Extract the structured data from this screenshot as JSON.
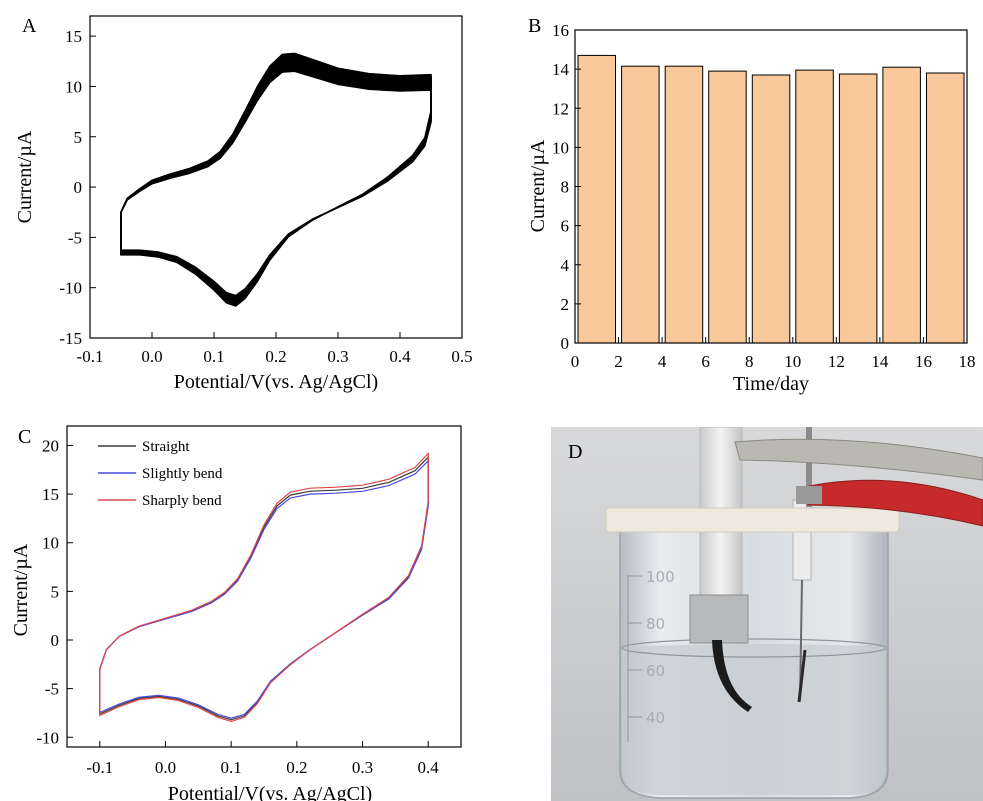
{
  "figure": {
    "panels": [
      "A",
      "B",
      "C",
      "D"
    ]
  },
  "chart_data": [
    {
      "panel": "A",
      "type": "line",
      "xlabel": "Potential/V(vs. Ag/AgCl)",
      "ylabel": "Current/µA",
      "xlim": [
        -0.1,
        0.5
      ],
      "ylim": [
        -15,
        17
      ],
      "xticks": [
        -0.1,
        0.0,
        0.1,
        0.2,
        0.3,
        0.4,
        0.5
      ],
      "xtick_labels": [
        "-0.1",
        "0.0",
        "0.1",
        "0.2",
        "0.3",
        "0.4",
        "0.5"
      ],
      "yticks": [
        -15,
        -10,
        -5,
        0,
        5,
        10,
        15
      ],
      "ytick_labels": [
        "-15",
        "-10",
        "-5",
        "0",
        "5",
        "10",
        "15"
      ],
      "series_style": "many overlapping black cyclic voltammetry cycles",
      "cycles": 20,
      "base_curve": {
        "forward": [
          [
            -0.05,
            -2.5
          ],
          [
            -0.04,
            -1.2
          ],
          [
            -0.02,
            -0.3
          ],
          [
            0.0,
            0.5
          ],
          [
            0.03,
            1.1
          ],
          [
            0.06,
            1.6
          ],
          [
            0.09,
            2.3
          ],
          [
            0.11,
            3.2
          ],
          [
            0.13,
            4.8
          ],
          [
            0.15,
            7.0
          ],
          [
            0.17,
            9.3
          ],
          [
            0.19,
            11.2
          ],
          [
            0.21,
            12.3
          ],
          [
            0.23,
            12.4
          ],
          [
            0.26,
            11.8
          ],
          [
            0.3,
            11.0
          ],
          [
            0.35,
            10.5
          ],
          [
            0.4,
            10.3
          ],
          [
            0.45,
            10.4
          ]
        ],
        "reverse": [
          [
            0.45,
            10.4
          ],
          [
            0.45,
            7.0
          ],
          [
            0.44,
            4.5
          ],
          [
            0.42,
            2.8
          ],
          [
            0.38,
            0.8
          ],
          [
            0.34,
            -0.8
          ],
          [
            0.3,
            -2.0
          ],
          [
            0.26,
            -3.2
          ],
          [
            0.22,
            -4.8
          ],
          [
            0.19,
            -7.0
          ],
          [
            0.17,
            -9.0
          ],
          [
            0.15,
            -10.6
          ],
          [
            0.135,
            -11.3
          ],
          [
            0.12,
            -11.0
          ],
          [
            0.1,
            -9.8
          ],
          [
            0.07,
            -8.3
          ],
          [
            0.04,
            -7.2
          ],
          [
            0.01,
            -6.7
          ],
          [
            -0.02,
            -6.5
          ],
          [
            -0.05,
            -6.5
          ],
          [
            -0.05,
            -2.5
          ]
        ]
      },
      "cycle_spread_uA": 1.2
    },
    {
      "panel": "B",
      "type": "bar",
      "xlabel": "Time/day",
      "ylabel": "Current/µA",
      "xlim": [
        0,
        18
      ],
      "ylim": [
        0,
        16
      ],
      "xticks": [
        0,
        2,
        4,
        6,
        8,
        10,
        12,
        14,
        16,
        18
      ],
      "yticks": [
        0,
        2,
        4,
        6,
        8,
        10,
        12,
        14,
        16
      ],
      "x": [
        1,
        3,
        5,
        7,
        9,
        11,
        13,
        15,
        17
      ],
      "values": [
        14.7,
        14.15,
        14.15,
        13.9,
        13.7,
        13.95,
        13.75,
        14.1,
        13.8
      ],
      "bar_color": "#f9c89b",
      "bar_edge": "#000000"
    },
    {
      "panel": "C",
      "type": "line",
      "xlabel": "Potential/V(vs. Ag/AgCl)",
      "ylabel": "Current/µA",
      "xlim": [
        -0.15,
        0.45
      ],
      "ylim": [
        -11,
        22
      ],
      "xticks": [
        -0.1,
        0.0,
        0.1,
        0.2,
        0.3,
        0.4
      ],
      "xtick_labels": [
        "-0.1",
        "0.0",
        "0.1",
        "0.2",
        "0.3",
        "0.4"
      ],
      "yticks": [
        -10,
        -5,
        0,
        5,
        10,
        15,
        20
      ],
      "ytick_labels": [
        "-10",
        "-5",
        "0",
        "5",
        "10",
        "15",
        "20"
      ],
      "legend_position": "top-left",
      "series": [
        {
          "name": "Straight",
          "color": "#3c3c3c",
          "offset": 0.0
        },
        {
          "name": "Slightly bend",
          "color": "#4a4adf",
          "offset": -0.4
        },
        {
          "name": "Sharply bend",
          "color": "#e04848",
          "offset": 0.4
        }
      ],
      "base_curve": {
        "forward": [
          [
            -0.1,
            -3.0
          ],
          [
            -0.09,
            -1.0
          ],
          [
            -0.07,
            0.4
          ],
          [
            -0.04,
            1.4
          ],
          [
            0.0,
            2.2
          ],
          [
            0.04,
            3.0
          ],
          [
            0.07,
            3.9
          ],
          [
            0.09,
            4.8
          ],
          [
            0.11,
            6.2
          ],
          [
            0.13,
            8.6
          ],
          [
            0.15,
            11.6
          ],
          [
            0.17,
            13.8
          ],
          [
            0.19,
            14.9
          ],
          [
            0.22,
            15.3
          ],
          [
            0.26,
            15.4
          ],
          [
            0.3,
            15.6
          ],
          [
            0.34,
            16.2
          ],
          [
            0.38,
            17.4
          ],
          [
            0.4,
            18.8
          ]
        ],
        "reverse": [
          [
            0.4,
            18.8
          ],
          [
            0.4,
            14.0
          ],
          [
            0.39,
            9.5
          ],
          [
            0.37,
            6.5
          ],
          [
            0.34,
            4.3
          ],
          [
            0.3,
            2.6
          ],
          [
            0.26,
            0.8
          ],
          [
            0.22,
            -1.0
          ],
          [
            0.19,
            -2.5
          ],
          [
            0.16,
            -4.3
          ],
          [
            0.14,
            -6.4
          ],
          [
            0.12,
            -7.8
          ],
          [
            0.1,
            -8.2
          ],
          [
            0.08,
            -7.8
          ],
          [
            0.05,
            -6.8
          ],
          [
            0.02,
            -6.1
          ],
          [
            -0.01,
            -5.8
          ],
          [
            -0.04,
            -6.0
          ],
          [
            -0.07,
            -6.7
          ],
          [
            -0.1,
            -7.6
          ],
          [
            -0.1,
            -3.0
          ]
        ]
      }
    }
  ],
  "photo": {
    "panel": "D",
    "beaker_marks": [
      "100",
      "80",
      "60",
      "40"
    ],
    "colors": {
      "background": "#cfd1d3",
      "lid": "#eee9df",
      "clip_red": "#c62a2a",
      "electrode_black": "#1b1b1b"
    }
  }
}
